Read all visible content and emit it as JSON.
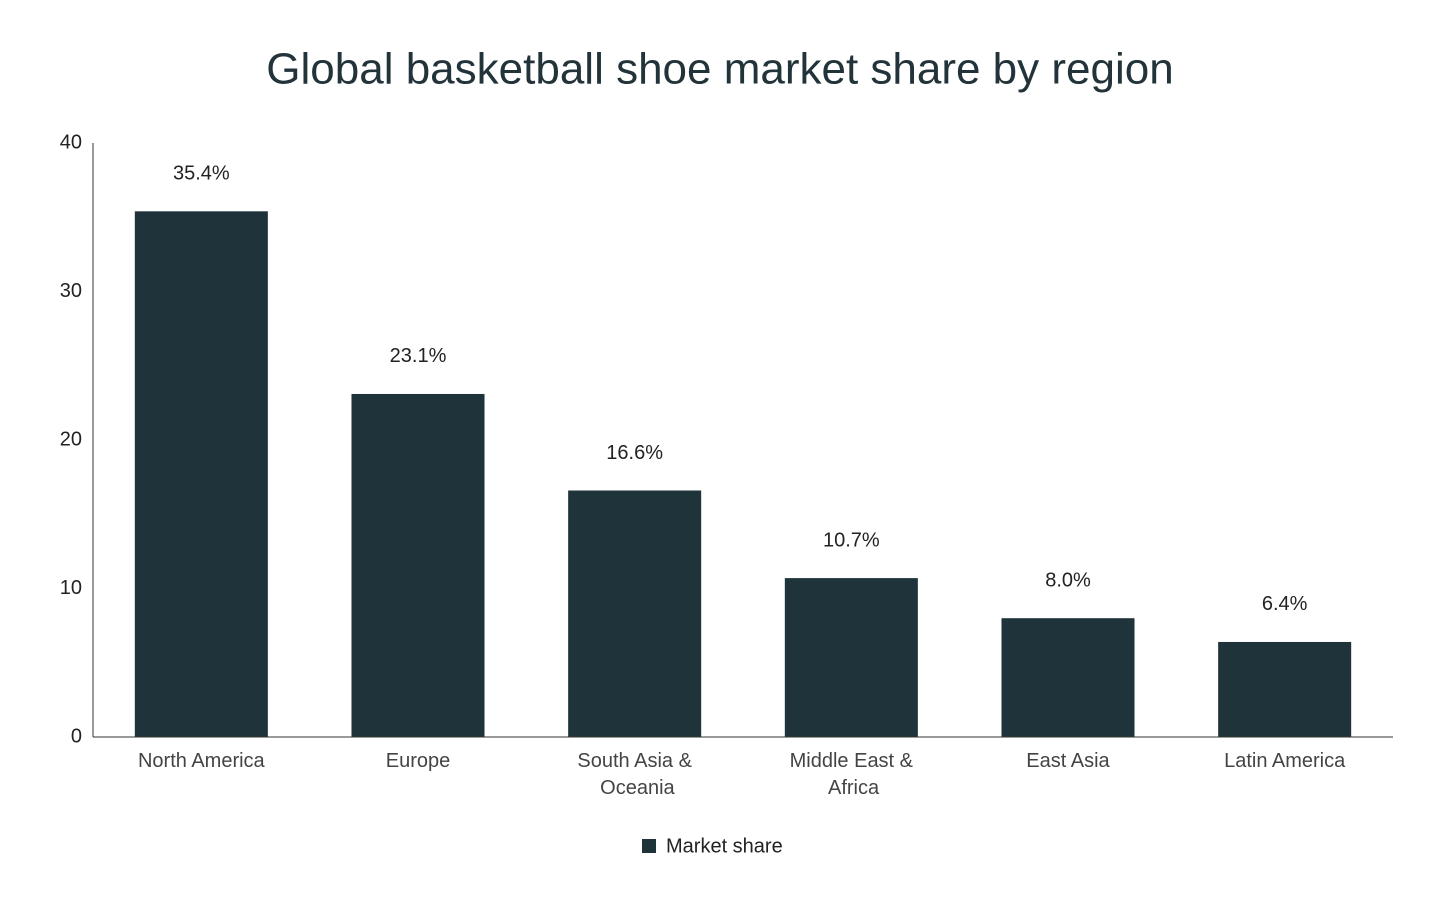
{
  "chart_data": {
    "type": "bar",
    "title": "Global basketball shoe market share by region",
    "categories": [
      "North America",
      "Europe",
      "South Asia & Oceania",
      "Middle East & Africa",
      "East Asia",
      "Latin America"
    ],
    "series": [
      {
        "name": "Market share",
        "color": "#1e343a",
        "values": [
          35.4,
          23.1,
          16.6,
          10.7,
          8.0,
          6.4
        ],
        "value_labels": [
          "35.4%",
          "23.1%",
          "16.6%",
          "10.7%",
          "8.0%",
          "6.4%"
        ]
      }
    ],
    "ylim": [
      0,
      40
    ],
    "yticks": [
      0,
      10,
      20,
      30,
      40
    ],
    "grid": false,
    "legend": "bottom"
  }
}
